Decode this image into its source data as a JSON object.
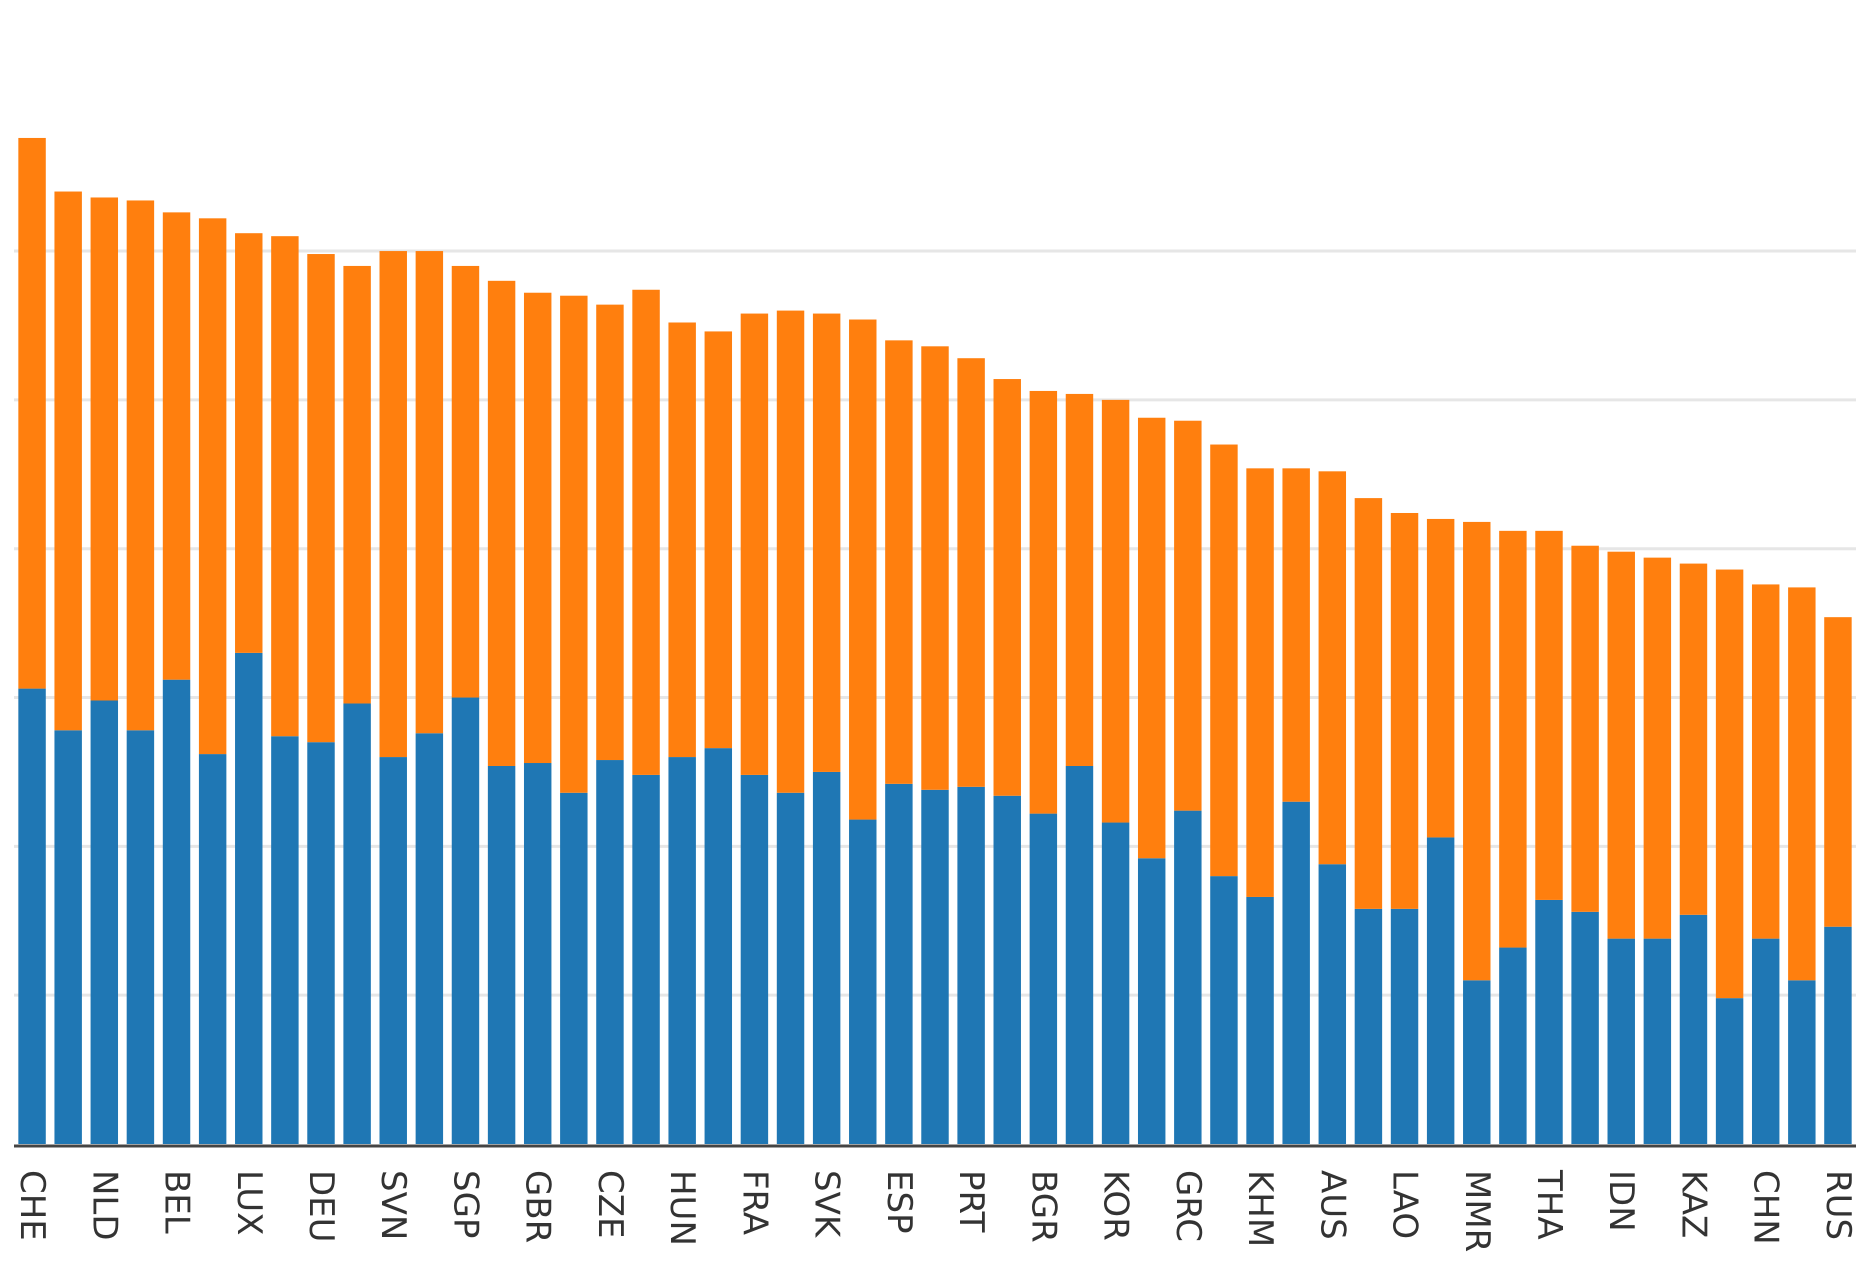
{
  "chart_data": {
    "type": "bar",
    "stacked": true,
    "grid": true,
    "categories": [
      "CHE",
      "",
      "NLD",
      "",
      "BEL",
      "",
      "LUX",
      "",
      "DEU",
      "",
      "SVN",
      "",
      "SGP",
      "",
      "GBR",
      "",
      "CZE",
      "",
      "HUN",
      "",
      "FRA",
      "",
      "SVK",
      "",
      "ESP",
      "",
      "PRT",
      "",
      "BGR",
      "",
      "KOR",
      "",
      "GRC",
      "",
      "KHM",
      "",
      "AUS",
      "",
      "LAO",
      "",
      "MMR",
      "",
      "THA",
      "",
      "IDN",
      "",
      "KAZ",
      "",
      "CHN",
      "",
      "RUS"
    ],
    "ylim": [
      0,
      3.4
    ],
    "series": [
      {
        "color": "#1f77b4",
        "values": [
          1.53,
          1.39,
          1.49,
          1.39,
          1.56,
          1.31,
          1.65,
          1.37,
          1.35,
          1.48,
          1.3,
          1.38,
          1.5,
          1.27,
          1.28,
          1.18,
          1.29,
          1.24,
          1.3,
          1.33,
          1.24,
          1.18,
          1.25,
          1.09,
          1.21,
          1.19,
          1.2,
          1.17,
          1.11,
          1.27,
          1.08,
          0.96,
          1.12,
          0.9,
          0.83,
          1.15,
          0.94,
          0.79,
          0.79,
          1.03,
          0.55,
          0.66,
          0.82,
          0.78,
          0.69,
          0.69,
          0.77,
          0.49,
          0.69,
          0.55,
          0.73
        ]
      },
      {
        "color": "#ff7f0e",
        "values": [
          1.85,
          1.81,
          1.69,
          1.78,
          1.57,
          1.8,
          1.41,
          1.68,
          1.64,
          1.47,
          1.7,
          1.62,
          1.45,
          1.63,
          1.58,
          1.67,
          1.53,
          1.63,
          1.46,
          1.4,
          1.55,
          1.62,
          1.54,
          1.68,
          1.49,
          1.49,
          1.44,
          1.4,
          1.42,
          1.25,
          1.42,
          1.48,
          1.31,
          1.45,
          1.44,
          1.12,
          1.32,
          1.38,
          1.33,
          1.07,
          1.54,
          1.4,
          1.24,
          1.23,
          1.3,
          1.28,
          1.18,
          1.44,
          1.19,
          1.32,
          1.04
        ]
      }
    ]
  }
}
